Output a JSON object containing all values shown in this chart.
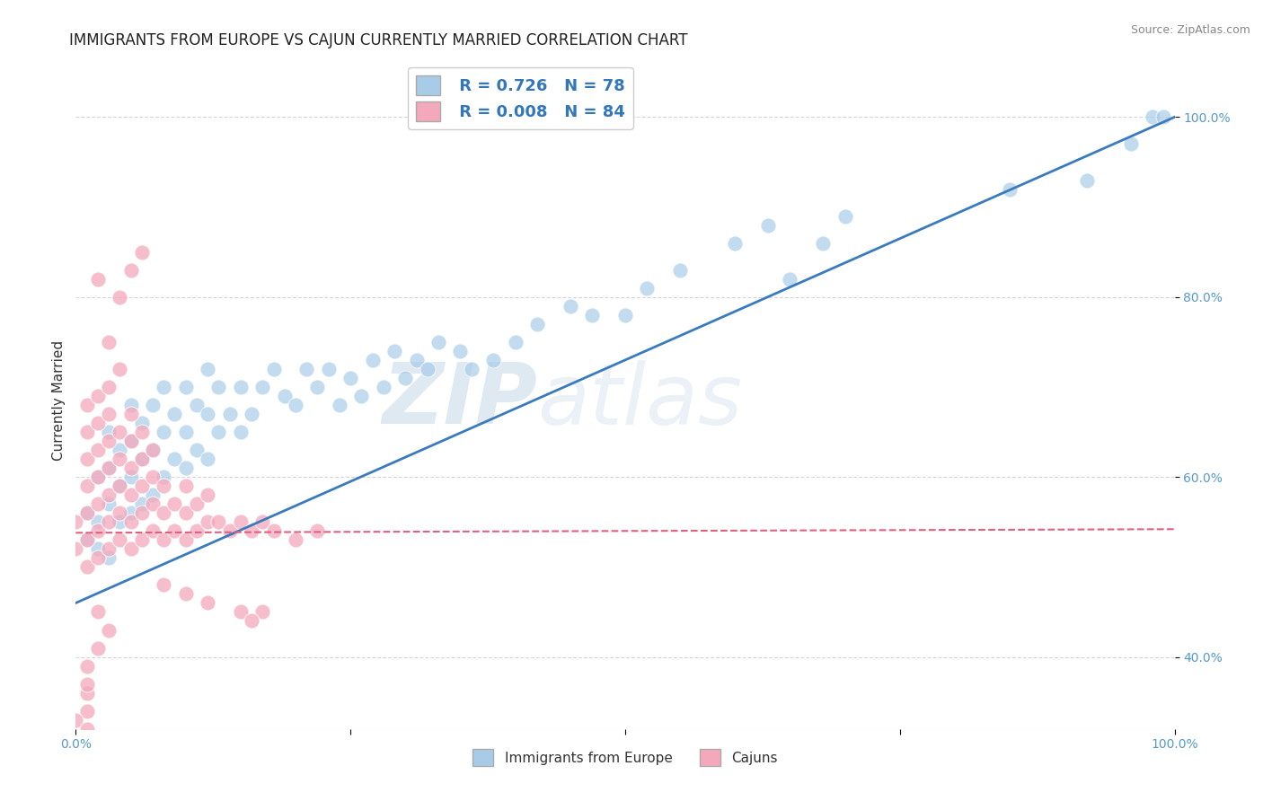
{
  "title": "IMMIGRANTS FROM EUROPE VS CAJUN CURRENTLY MARRIED CORRELATION CHART",
  "source": "Source: ZipAtlas.com",
  "ylabel": "Currently Married",
  "xlim": [
    0.0,
    1.0
  ],
  "ylim": [
    0.32,
    1.05
  ],
  "ytick_positions": [
    0.4,
    0.6,
    0.8,
    1.0
  ],
  "ytick_labels": [
    "40.0%",
    "60.0%",
    "80.0%",
    "100.0%"
  ],
  "legend_blue_r": "0.726",
  "legend_blue_n": "78",
  "legend_pink_r": "0.008",
  "legend_pink_n": "84",
  "legend_label_blue": "Immigrants from Europe",
  "legend_label_pink": "Cajuns",
  "blue_color": "#a8cce8",
  "pink_color": "#f4a8bc",
  "blue_line_color": "#3a7abf",
  "pink_line_color": "#e06080",
  "watermark_zip": "ZIP",
  "watermark_atlas": "atlas",
  "title_fontsize": 12,
  "axis_label_fontsize": 11,
  "tick_fontsize": 10,
  "blue_scatter_x": [
    0.01,
    0.01,
    0.02,
    0.02,
    0.02,
    0.03,
    0.03,
    0.03,
    0.03,
    0.04,
    0.04,
    0.04,
    0.05,
    0.05,
    0.05,
    0.05,
    0.06,
    0.06,
    0.06,
    0.07,
    0.07,
    0.07,
    0.08,
    0.08,
    0.08,
    0.09,
    0.09,
    0.1,
    0.1,
    0.1,
    0.11,
    0.11,
    0.12,
    0.12,
    0.12,
    0.13,
    0.13,
    0.14,
    0.15,
    0.15,
    0.16,
    0.17,
    0.18,
    0.19,
    0.2,
    0.21,
    0.22,
    0.23,
    0.24,
    0.25,
    0.26,
    0.27,
    0.28,
    0.29,
    0.3,
    0.31,
    0.32,
    0.33,
    0.35,
    0.36,
    0.38,
    0.4,
    0.42,
    0.45,
    0.47,
    0.5,
    0.52,
    0.55,
    0.6,
    0.63,
    0.65,
    0.68,
    0.7,
    0.85,
    0.92,
    0.96,
    0.98,
    0.99
  ],
  "blue_scatter_y": [
    0.53,
    0.56,
    0.52,
    0.55,
    0.6,
    0.51,
    0.57,
    0.61,
    0.65,
    0.55,
    0.59,
    0.63,
    0.56,
    0.6,
    0.64,
    0.68,
    0.57,
    0.62,
    0.66,
    0.58,
    0.63,
    0.68,
    0.6,
    0.65,
    0.7,
    0.62,
    0.67,
    0.61,
    0.65,
    0.7,
    0.63,
    0.68,
    0.62,
    0.67,
    0.72,
    0.65,
    0.7,
    0.67,
    0.65,
    0.7,
    0.67,
    0.7,
    0.72,
    0.69,
    0.68,
    0.72,
    0.7,
    0.72,
    0.68,
    0.71,
    0.69,
    0.73,
    0.7,
    0.74,
    0.71,
    0.73,
    0.72,
    0.75,
    0.74,
    0.72,
    0.73,
    0.75,
    0.77,
    0.79,
    0.78,
    0.78,
    0.81,
    0.83,
    0.86,
    0.88,
    0.82,
    0.86,
    0.89,
    0.92,
    0.93,
    0.97,
    1.0,
    1.0
  ],
  "pink_scatter_x": [
    0.0,
    0.0,
    0.01,
    0.01,
    0.01,
    0.01,
    0.01,
    0.01,
    0.01,
    0.02,
    0.02,
    0.02,
    0.02,
    0.02,
    0.02,
    0.02,
    0.03,
    0.03,
    0.03,
    0.03,
    0.03,
    0.03,
    0.03,
    0.04,
    0.04,
    0.04,
    0.04,
    0.04,
    0.05,
    0.05,
    0.05,
    0.05,
    0.05,
    0.05,
    0.06,
    0.06,
    0.06,
    0.06,
    0.06,
    0.07,
    0.07,
    0.07,
    0.07,
    0.08,
    0.08,
    0.08,
    0.09,
    0.09,
    0.1,
    0.1,
    0.1,
    0.11,
    0.11,
    0.12,
    0.12,
    0.13,
    0.14,
    0.15,
    0.16,
    0.17,
    0.18,
    0.2,
    0.22,
    0.08,
    0.1,
    0.12,
    0.15,
    0.17,
    0.04,
    0.05,
    0.06,
    0.02,
    0.03,
    0.04,
    0.02,
    0.03,
    0.02,
    0.01,
    0.01,
    0.01,
    0.0,
    0.01,
    0.01,
    0.16
  ],
  "pink_scatter_y": [
    0.52,
    0.55,
    0.5,
    0.53,
    0.56,
    0.59,
    0.62,
    0.65,
    0.68,
    0.51,
    0.54,
    0.57,
    0.6,
    0.63,
    0.66,
    0.69,
    0.52,
    0.55,
    0.58,
    0.61,
    0.64,
    0.67,
    0.7,
    0.53,
    0.56,
    0.59,
    0.62,
    0.65,
    0.52,
    0.55,
    0.58,
    0.61,
    0.64,
    0.67,
    0.53,
    0.56,
    0.59,
    0.62,
    0.65,
    0.54,
    0.57,
    0.6,
    0.63,
    0.53,
    0.56,
    0.59,
    0.54,
    0.57,
    0.53,
    0.56,
    0.59,
    0.54,
    0.57,
    0.55,
    0.58,
    0.55,
    0.54,
    0.55,
    0.54,
    0.55,
    0.54,
    0.53,
    0.54,
    0.48,
    0.47,
    0.46,
    0.45,
    0.45,
    0.8,
    0.83,
    0.85,
    0.82,
    0.75,
    0.72,
    0.45,
    0.43,
    0.41,
    0.39,
    0.36,
    0.34,
    0.33,
    0.37,
    0.32,
    0.44
  ],
  "blue_line_x": [
    0.0,
    1.0
  ],
  "blue_line_y": [
    0.46,
    1.0
  ],
  "pink_line_x": [
    0.0,
    1.0
  ],
  "pink_line_y": [
    0.538,
    0.542
  ],
  "grid_color": "#cccccc",
  "background_color": "#ffffff"
}
